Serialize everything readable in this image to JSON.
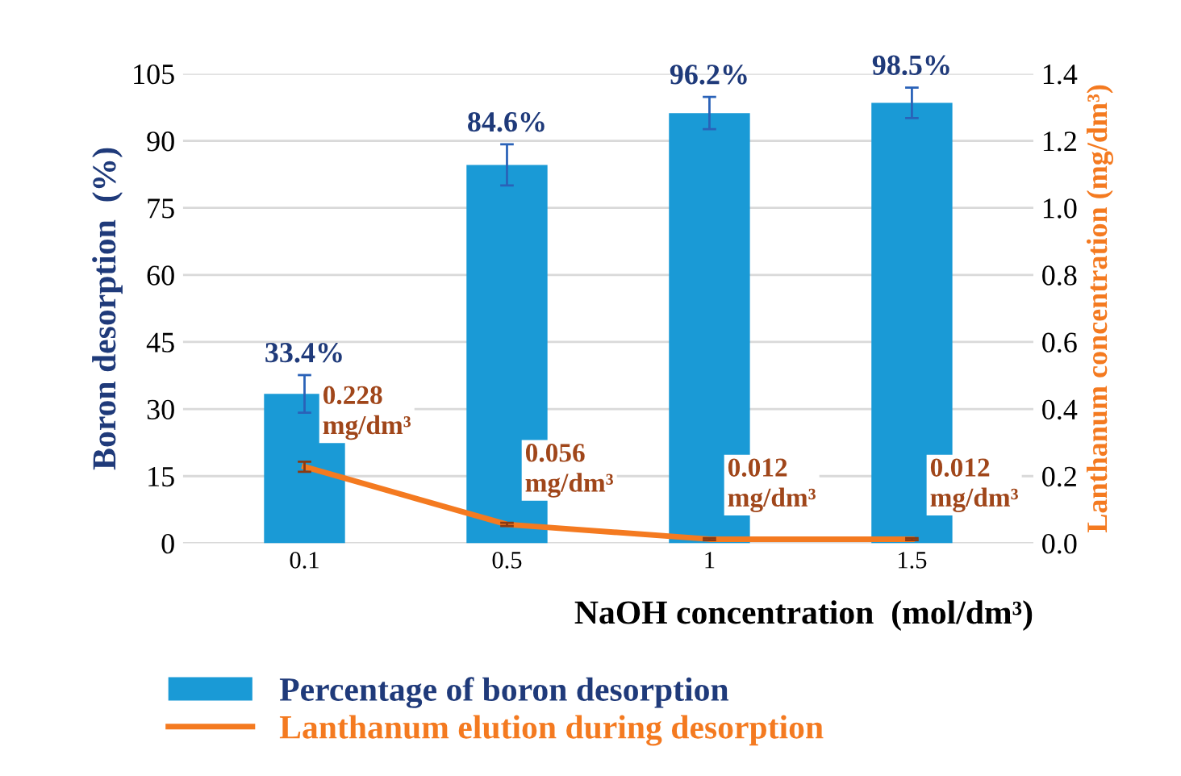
{
  "chart_data": {
    "type": "bar",
    "categories": [
      "0.1",
      "0.5",
      "1",
      "1.5"
    ],
    "xlabel": "NaOH concentration  (mol/dm³)",
    "ylabel": "Boron desorption  (%)",
    "y2label": "Lanthanum concentration (mg/dm³)",
    "ylim": [
      0,
      105
    ],
    "yticks": [
      0,
      15,
      30,
      45,
      60,
      75,
      90,
      105
    ],
    "y2lim": [
      0,
      1.4
    ],
    "y2ticks": [
      {
        "value": 0,
        "label": "0.0"
      },
      0.2,
      0.4,
      0.6,
      0.8,
      {
        "value": 1,
        "label": "1.0"
      },
      1.2,
      1.4
    ],
    "grid": "y",
    "legend": "bottom",
    "series": [
      {
        "name": "Percentage of boron desorption",
        "color": "#1a9ad6",
        "values": [
          33.4,
          84.6,
          96.2,
          98.5
        ],
        "errors": [
          4.2,
          4.6,
          3.6,
          3.4
        ],
        "value_labels": [
          "33.4%",
          "84.6%",
          "96.2%",
          "98.5%"
        ]
      },
      {
        "name": "Lanthanum elution during desorption",
        "type": "line",
        "axis": "y2",
        "color": "#f47a20",
        "values": [
          0.228,
          0.056,
          0.012,
          0.012
        ],
        "errors": [
          0.015,
          0.005,
          0.003,
          0.003
        ],
        "value_labels": [
          "0.228\nmg/dm³",
          "0.056\nmg/dm³",
          "0.012\nmg/dm³",
          "0.012\nmg/dm³"
        ]
      }
    ]
  }
}
